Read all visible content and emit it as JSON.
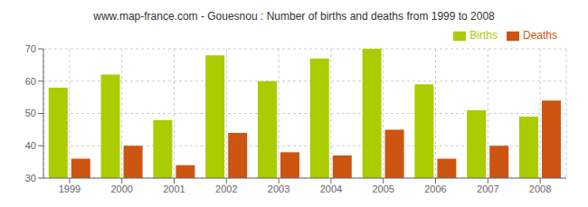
{
  "chart_data": {
    "type": "bar",
    "title": "www.map-france.com - Gouesnou : Number of births and deaths from 1999 to 2008",
    "categories": [
      "1999",
      "2000",
      "2001",
      "2002",
      "2003",
      "2004",
      "2005",
      "2006",
      "2007",
      "2008"
    ],
    "series": [
      {
        "name": "Births",
        "color": "#aacc00",
        "values": [
          58,
          62,
          48,
          68,
          60,
          67,
          70,
          59,
          51,
          49
        ]
      },
      {
        "name": "Deaths",
        "color": "#cc5511",
        "values": [
          36,
          40,
          34,
          44,
          38,
          37,
          45,
          36,
          40,
          54
        ]
      }
    ],
    "ylim": [
      30,
      70
    ],
    "yticks": [
      30,
      40,
      50,
      60,
      70
    ],
    "grid": true,
    "legend": "upper right"
  }
}
